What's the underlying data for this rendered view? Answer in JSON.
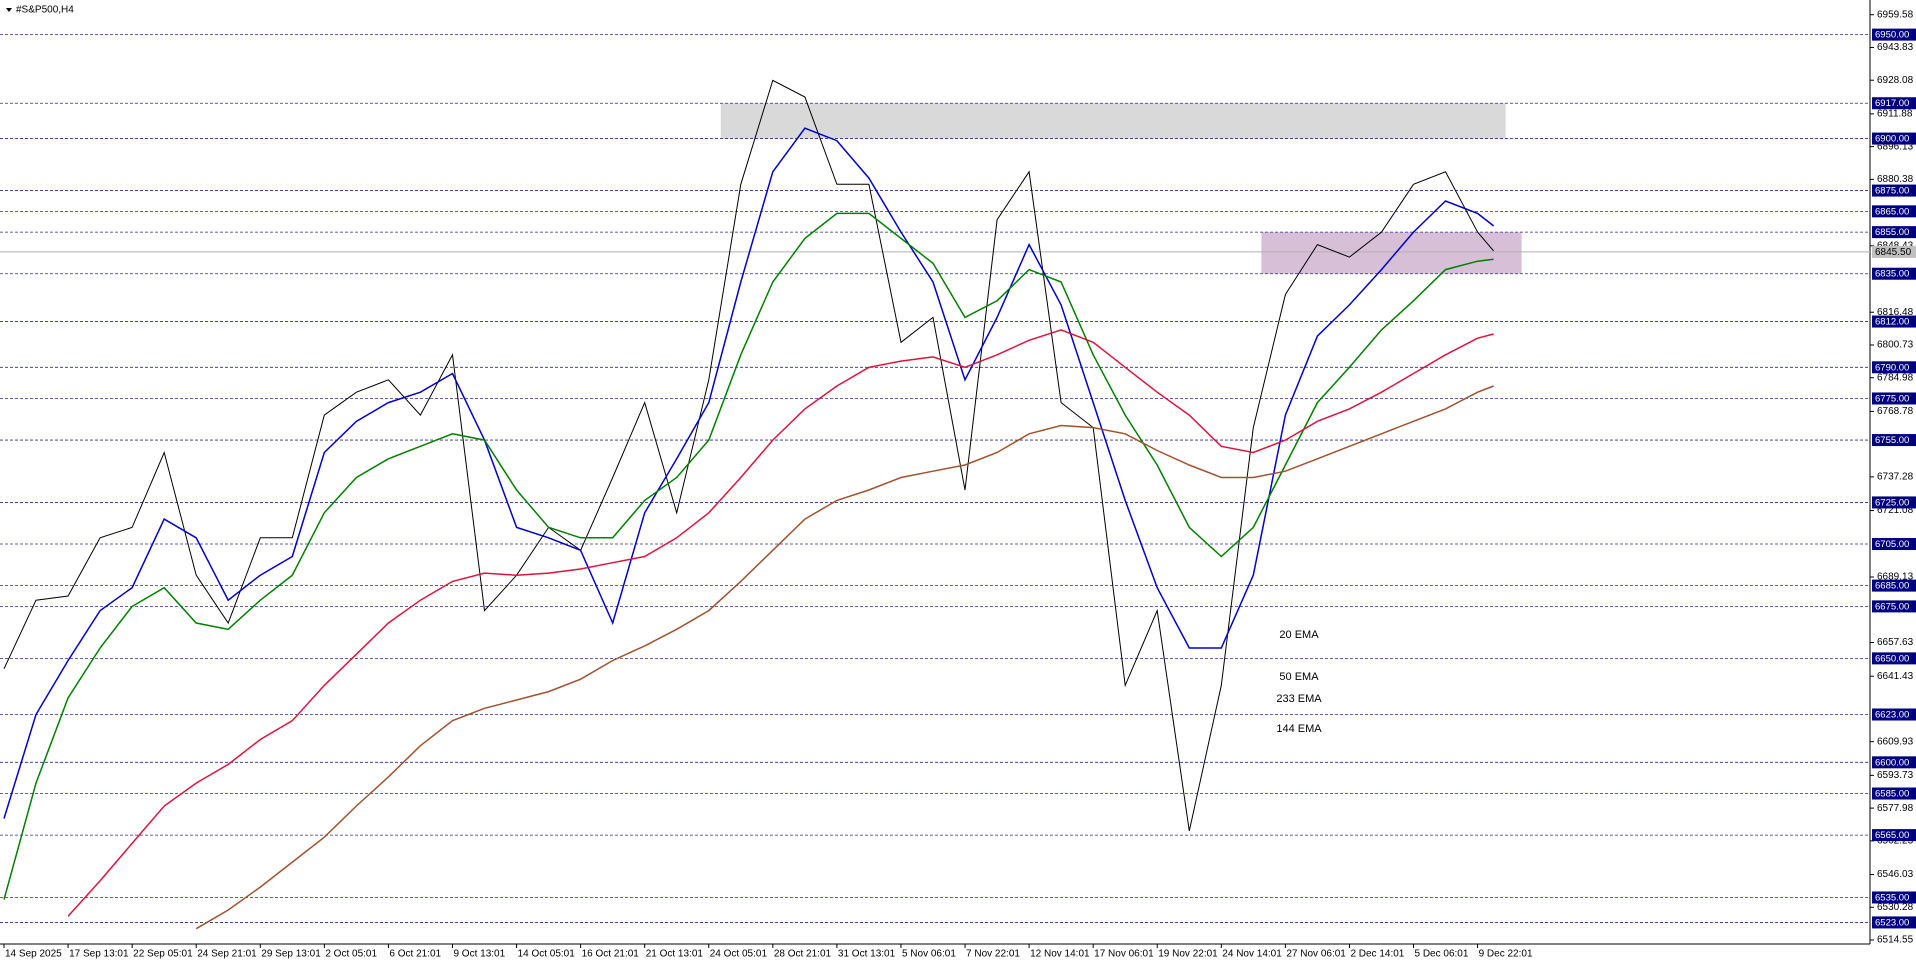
{
  "chart_data": {
    "type": "line",
    "title": "#S&P500,H4",
    "xlim": [
      -1,
      466
    ],
    "ylim": [
      6514.55,
      6959.58
    ],
    "x": [
      0,
      8,
      16,
      24,
      32,
      40,
      48,
      56,
      64,
      72,
      80,
      88,
      96,
      104,
      112,
      120,
      128,
      136,
      144,
      152,
      160,
      168,
      176,
      184,
      192,
      200,
      208,
      216,
      224,
      232,
      240,
      248,
      256,
      264,
      272,
      280,
      288,
      296,
      304,
      312,
      320,
      328,
      336,
      344,
      352,
      360,
      368,
      372
    ],
    "xticks": [
      {
        "value": 0,
        "label": "14 Sep 2025"
      },
      {
        "value": 16,
        "label": "17 Sep 13:01"
      },
      {
        "value": 32,
        "label": "22 Sep 05:01"
      },
      {
        "value": 48,
        "label": "24 Sep 21:01"
      },
      {
        "value": 64,
        "label": "29 Sep 13:01"
      },
      {
        "value": 80,
        "label": "2 Oct 05:01"
      },
      {
        "value": 96,
        "label": "6 Oct 21:01"
      },
      {
        "value": 112,
        "label": "9 Oct 13:01"
      },
      {
        "value": 128,
        "label": "14 Oct 05:01"
      },
      {
        "value": 144,
        "label": "16 Oct 21:01"
      },
      {
        "value": 160,
        "label": "21 Oct 13:01"
      },
      {
        "value": 176,
        "label": "24 Oct 05:01"
      },
      {
        "value": 192,
        "label": "28 Oct 21:01"
      },
      {
        "value": 208,
        "label": "31 Oct 13:01"
      },
      {
        "value": 224,
        "label": "5 Nov 06:01"
      },
      {
        "value": 240,
        "label": "7 Nov 22:01"
      },
      {
        "value": 256,
        "label": "12 Nov 14:01"
      },
      {
        "value": 272,
        "label": "17 Nov 06:01"
      },
      {
        "value": 288,
        "label": "19 Nov 22:01"
      },
      {
        "value": 304,
        "label": "24 Nov 14:01"
      },
      {
        "value": 320,
        "label": "27 Nov 06:01"
      },
      {
        "value": 336,
        "label": "2 Dec 14:01"
      },
      {
        "value": 352,
        "label": "5 Dec 06:01"
      },
      {
        "value": 368,
        "label": "9 Dec 22:01"
      }
    ],
    "yticks": [
      6959.58,
      6943.83,
      6928.08,
      6911.88,
      6896.13,
      6880.38,
      6848.43,
      6816.48,
      6800.73,
      6784.98,
      6768.78,
      6737.28,
      6721.08,
      6689.13,
      6657.63,
      6641.43,
      6609.93,
      6593.73,
      6577.98,
      6562.23,
      6546.03,
      6530.28,
      6514.55
    ],
    "levels": [
      {
        "value": 6950,
        "label": "6950.00"
      },
      {
        "value": 6917,
        "label": "6917.00"
      },
      {
        "value": 6900,
        "label": "6900.00"
      },
      {
        "value": 6875,
        "label": "6875.00"
      },
      {
        "value": 6865,
        "label": "6865.00"
      },
      {
        "value": 6855,
        "label": "6855.00"
      },
      {
        "value": 6835,
        "label": "6835.00"
      },
      {
        "value": 6812,
        "label": "6812.00"
      },
      {
        "value": 6790,
        "label": "6790.00"
      },
      {
        "value": 6775,
        "label": "6775.00"
      },
      {
        "value": 6755,
        "label": "6755.00"
      },
      {
        "value": 6725,
        "label": "6725.00"
      },
      {
        "value": 6705,
        "label": "6705.00"
      },
      {
        "value": 6685,
        "label": "6685.00"
      },
      {
        "value": 6675,
        "label": "6675.00"
      },
      {
        "value": 6650,
        "label": "6650.00"
      },
      {
        "value": 6623,
        "label": "6623.00"
      },
      {
        "value": 6600,
        "label": "6600.00"
      },
      {
        "value": 6585,
        "label": "6585.00"
      },
      {
        "value": 6565,
        "label": "6565.00"
      },
      {
        "value": 6535,
        "label": "6535.00"
      },
      {
        "value": 6523,
        "label": "6523.00"
      }
    ],
    "current_price": {
      "value": 6845.5,
      "label": "6845.50"
    },
    "zones": [
      {
        "x": [
          179,
          375
        ],
        "y": [
          6900,
          6917
        ],
        "color": "#d9d9d9"
      },
      {
        "x": [
          314,
          379
        ],
        "y": [
          6835,
          6855
        ],
        "color": "#d8bfd8"
      }
    ],
    "series": [
      {
        "color": "#000000",
        "values": [
          6645,
          6678,
          6680,
          6708,
          6713,
          6749,
          6690,
          6667,
          6708,
          6708,
          6767,
          6778,
          6784,
          6767,
          6796,
          6673,
          6690,
          6713,
          6702,
          6737,
          6773,
          6720,
          6784,
          6878,
          6928,
          6920,
          6878,
          6878,
          6802,
          6814,
          6731,
          6861,
          6884,
          6773,
          6761,
          6637,
          6673,
          6567,
          6637,
          6761,
          6825,
          6849,
          6843,
          6855,
          6878,
          6884,
          6855,
          6846
        ]
      },
      {
        "name": "20 EMA",
        "color": "#0000cc",
        "values": [
          6573,
          6623,
          6649,
          6673,
          6684,
          6717,
          6708,
          6678,
          6690,
          6699,
          6749,
          6764,
          6773,
          6778,
          6787,
          6755,
          6713,
          6708,
          6702,
          6667,
          6720,
          6746,
          6773,
          6831,
          6884,
          6905,
          6899,
          6881,
          6855,
          6831,
          6784,
          6814,
          6849,
          6820,
          6773,
          6726,
          6684,
          6655,
          6655,
          6690,
          6767,
          6805,
          6820,
          6837,
          6855,
          6870,
          6864,
          6858
        ]
      },
      {
        "name": "50 EMA",
        "color": "#008000",
        "values": [
          6534,
          6590,
          6631,
          6655,
          6675,
          6684,
          6667,
          6664,
          6678,
          6690,
          6720,
          6737,
          6746,
          6752,
          6758,
          6755,
          6731,
          6713,
          6708,
          6708,
          6726,
          6737,
          6755,
          6796,
          6831,
          6852,
          6864,
          6864,
          6852,
          6840,
          6814,
          6822,
          6837,
          6831,
          6796,
          6767,
          6743,
          6713,
          6699,
          6713,
          6743,
          6773,
          6790,
          6808,
          6822,
          6837,
          6841,
          6842
        ]
      },
      {
        "name": "233 EMA",
        "color": "#a0522d",
        "values": [
          null,
          null,
          null,
          null,
          null,
          null,
          6520,
          6529,
          6540,
          6552,
          6564,
          6579,
          6593,
          6608,
          6620,
          6626,
          6630,
          6634,
          6640,
          6649,
          6656,
          6664,
          6673,
          6687,
          6702,
          6717,
          6726,
          6731,
          6737,
          6740,
          6743,
          6749,
          6758,
          6762,
          6761,
          6758,
          6750,
          6743,
          6737,
          6737,
          6740,
          6746,
          6752,
          6758,
          6764,
          6770,
          6778,
          6781
        ]
      },
      {
        "name": "144 EMA",
        "color": "#dc143c",
        "values": [
          null,
          null,
          6526,
          6543,
          6561,
          6579,
          6590,
          6599,
          6611,
          6620,
          6637,
          6652,
          6667,
          6678,
          6687,
          6691,
          6690,
          6691,
          6693,
          6696,
          6699,
          6708,
          6720,
          6737,
          6755,
          6770,
          6781,
          6790,
          6793,
          6795,
          6790,
          6796,
          6803,
          6808,
          6802,
          6790,
          6778,
          6767,
          6752,
          6749,
          6755,
          6764,
          6770,
          6778,
          6787,
          6796,
          6804,
          6806
        ]
      }
    ]
  }
}
